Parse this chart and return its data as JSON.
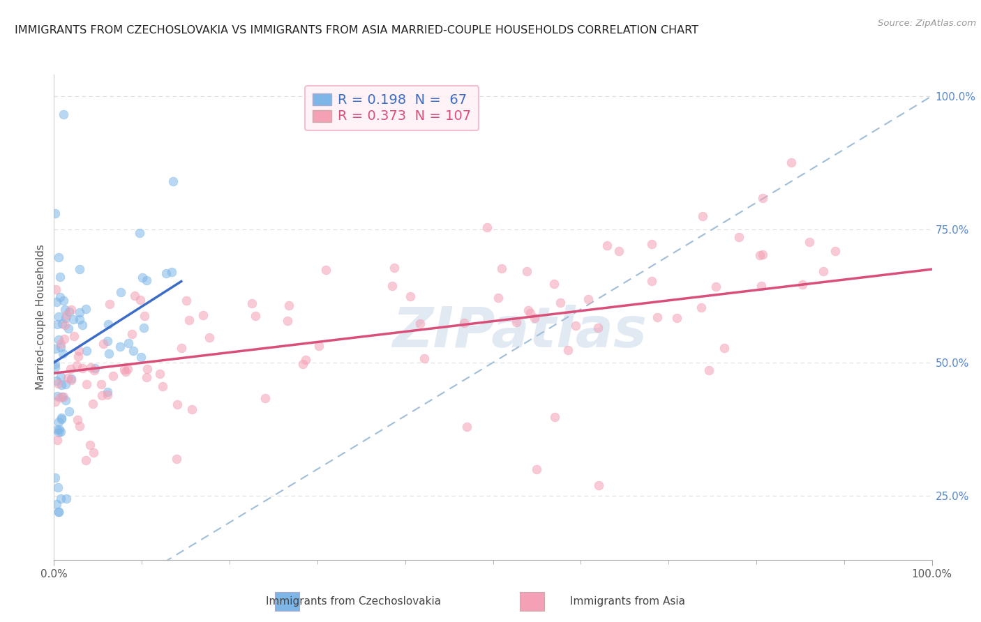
{
  "title": "IMMIGRANTS FROM CZECHOSLOVAKIA VS IMMIGRANTS FROM ASIA MARRIED-COUPLE HOUSEHOLDS CORRELATION CHART",
  "source": "Source: ZipAtlas.com",
  "xlabel_left": "Immigrants from Czechoslovakia",
  "xlabel_right": "Immigrants from Asia",
  "ylabel": "Married-couple Households",
  "R_blue": 0.198,
  "N_blue": 67,
  "R_pink": 0.373,
  "N_pink": 107,
  "color_blue": "#7EB6E8",
  "color_pink": "#F4A0B5",
  "trendline_blue": "#3A6CC8",
  "trendline_pink": "#D94F7A",
  "diag_color": "#A0BDD8",
  "background": "#FFFFFF",
  "xmin": 0.0,
  "xmax": 1.0,
  "ymin": 0.13,
  "ymax": 1.04,
  "grid_color": "#DDDDDD",
  "right_yticks": [
    0.25,
    0.5,
    0.75,
    1.0
  ],
  "right_ytick_labels": [
    "25.0%",
    "50.0%",
    "75.0%",
    "100.0%"
  ],
  "watermark_text": "ZIPatlas",
  "watermark_color": "#C5D5E8",
  "legend_face": "#FFF0F5",
  "legend_edge": "#F0B0C8"
}
